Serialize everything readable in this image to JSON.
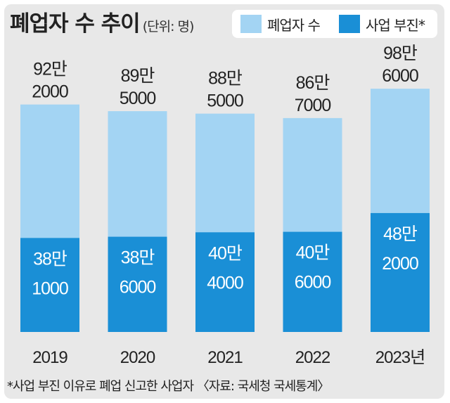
{
  "title": "폐업자 수 추이",
  "unit": "(단위: 명)",
  "colors": {
    "total": "#a3d4f3",
    "business_slump": "#1a8fd6",
    "background": "#e8e8e8"
  },
  "legend": {
    "total": "폐업자 수",
    "business_slump": "사업 부진*"
  },
  "footnote": "*사업 부진 이유로 폐업 신고한 사업자 〈자료: 국세청 국세통계〉",
  "chart_data": {
    "type": "bar",
    "categories": [
      "2019",
      "2020",
      "2021",
      "2022",
      "2023년"
    ],
    "series": [
      {
        "name": "폐업자 수",
        "values": [
          922000,
          895000,
          885000,
          867000,
          986000
        ]
      },
      {
        "name": "사업 부진*",
        "values": [
          381000,
          386000,
          404000,
          406000,
          482000
        ]
      }
    ],
    "total_labels": [
      [
        "92만",
        "2000"
      ],
      [
        "89만",
        "5000"
      ],
      [
        "88만",
        "5000"
      ],
      [
        "86만",
        "7000"
      ],
      [
        "98만",
        "6000"
      ]
    ],
    "slump_labels": [
      [
        "38만",
        "1000"
      ],
      [
        "38만",
        "6000"
      ],
      [
        "40만",
        "4000"
      ],
      [
        "40만",
        "6000"
      ],
      [
        "48만",
        "2000"
      ]
    ],
    "ylim": [
      0,
      1300000
    ],
    "grid": false
  }
}
